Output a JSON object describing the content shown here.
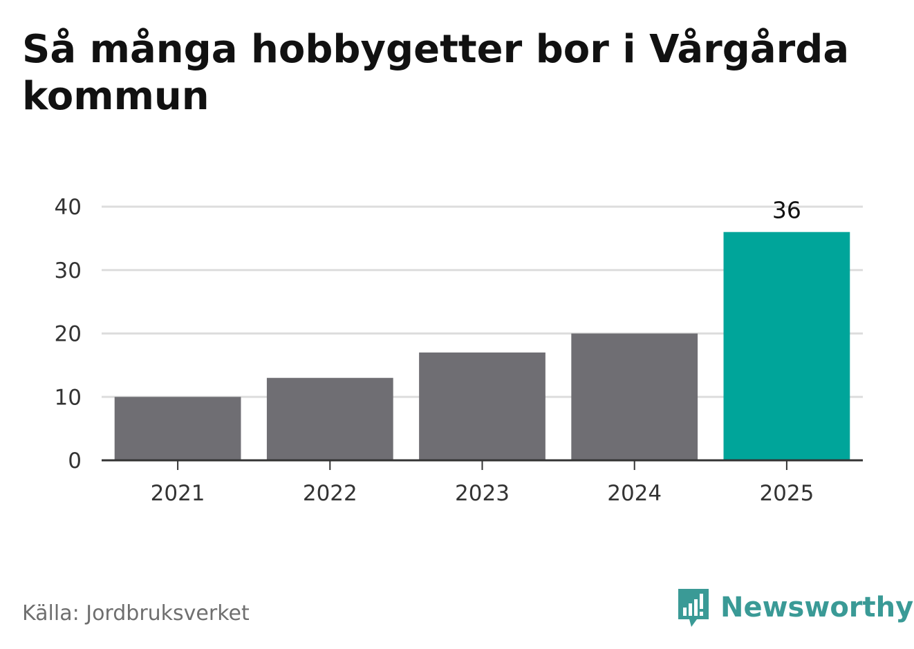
{
  "title": "Så många hobbygetter bor i Vårgårda kommun",
  "source": "Källa: Jordbruksverket",
  "brand": {
    "name": "Newsworthy",
    "icon": "bar-chart-speech-bubble-icon"
  },
  "colors": {
    "bar_default": "#6f6e73",
    "bar_highlight": "#00a59a",
    "grid": "#dddddd",
    "axis": "#333333",
    "text": "#333333",
    "brand": "#3a9a96"
  },
  "chart_data": {
    "type": "bar",
    "categories": [
      "2021",
      "2022",
      "2023",
      "2024",
      "2025"
    ],
    "values": [
      10,
      13,
      17,
      20,
      36
    ],
    "highlight_index": 4,
    "data_labels": [
      null,
      null,
      null,
      null,
      "36"
    ],
    "ylim": [
      0,
      40
    ],
    "yticks": [
      0,
      10,
      20,
      30,
      40
    ],
    "grid": true,
    "xlabel": "",
    "ylabel": ""
  }
}
